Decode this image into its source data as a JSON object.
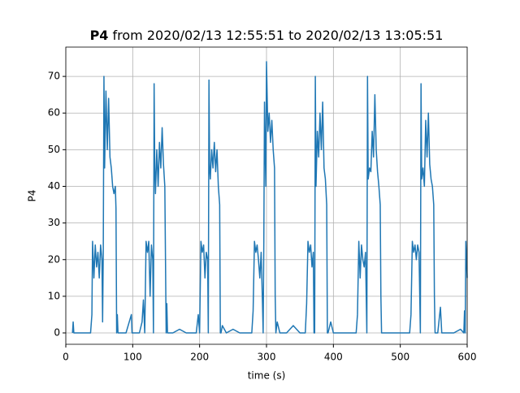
{
  "chart_data": {
    "type": "line",
    "title_bold": "P4",
    "title": "from 2020/02/13 12:55:51 to 2020/02/13 13:05:51",
    "xlabel": "time (s)",
    "ylabel": "P4",
    "xlim": [
      0,
      600
    ],
    "ylim": [
      -3.1,
      78
    ],
    "xticks": [
      0,
      100,
      200,
      300,
      400,
      500,
      600
    ],
    "yticks": [
      0,
      10,
      20,
      30,
      40,
      50,
      60,
      70
    ],
    "grid": true,
    "series": [
      {
        "name": "P4",
        "color": "#1f77b4",
        "x": [
          10,
          11,
          12,
          20,
          30,
          37,
          39,
          40,
          42,
          44,
          46,
          48,
          50,
          52,
          54,
          55,
          56,
          57,
          58,
          60,
          62,
          64,
          66,
          68,
          70,
          72,
          74,
          75,
          76,
          77,
          78,
          80,
          90,
          98,
          99,
          100,
          110,
          114,
          116,
          118,
          120,
          122,
          124,
          126,
          128,
          130,
          131,
          132,
          133,
          134,
          136,
          138,
          140,
          142,
          144,
          146,
          148,
          149,
          150,
          151,
          152,
          154,
          160,
          170,
          180,
          190,
          195,
          198,
          200,
          202,
          204,
          206,
          208,
          210,
          212,
          213,
          214,
          215,
          216,
          218,
          220,
          222,
          224,
          226,
          228,
          230,
          231,
          232,
          234,
          240,
          250,
          260,
          270,
          275,
          278,
          280,
          282,
          284,
          286,
          288,
          290,
          292,
          294,
          295,
          296,
          297,
          298,
          299,
          300,
          302,
          304,
          306,
          308,
          310,
          312,
          313,
          314,
          316,
          320,
          330,
          340,
          350,
          355,
          358,
          360,
          362,
          364,
          366,
          368,
          370,
          371,
          372,
          373,
          374,
          376,
          378,
          380,
          382,
          384,
          386,
          388,
          390,
          391,
          392,
          396,
          400,
          410,
          420,
          430,
          434,
          436,
          438,
          440,
          442,
          444,
          446,
          448,
          450,
          451,
          452,
          454,
          456,
          458,
          460,
          462,
          464,
          466,
          468,
          470,
          471,
          472,
          474,
          480,
          490,
          500,
          510,
          514,
          516,
          518,
          520,
          522,
          524,
          526,
          528,
          530,
          531,
          532,
          534,
          536,
          538,
          540,
          542,
          544,
          546,
          548,
          550,
          551,
          552,
          556,
          560,
          562,
          570,
          580,
          590,
          595,
          596,
          597,
          598,
          600
        ],
        "values": [
          0,
          3,
          0,
          0,
          0,
          0,
          5,
          25,
          15,
          24,
          18,
          22,
          15,
          24,
          20,
          3,
          22,
          70,
          45,
          66,
          50,
          64,
          48,
          45,
          40,
          38,
          40,
          34,
          0,
          5,
          0,
          0,
          0,
          5,
          0,
          0,
          0,
          3,
          9,
          0,
          25,
          22,
          25,
          10,
          24,
          20,
          0,
          68,
          45,
          38,
          50,
          40,
          52,
          45,
          56,
          46,
          40,
          20,
          0,
          8,
          0,
          0,
          0,
          1,
          0,
          0,
          0,
          5,
          0,
          25,
          22,
          24,
          15,
          22,
          20,
          0,
          69,
          45,
          42,
          50,
          45,
          52,
          44,
          50,
          40,
          35,
          0,
          0,
          2,
          0,
          1,
          0,
          0,
          0,
          0,
          6,
          25,
          22,
          24,
          20,
          15,
          22,
          8,
          0,
          25,
          63,
          50,
          40,
          74,
          55,
          60,
          52,
          58,
          50,
          45,
          10,
          0,
          3,
          0,
          0,
          2,
          0,
          0,
          0,
          8,
          25,
          22,
          24,
          18,
          22,
          0,
          0,
          70,
          40,
          55,
          48,
          60,
          50,
          63,
          45,
          42,
          35,
          0,
          0,
          3,
          0,
          0,
          0,
          0,
          0,
          5,
          25,
          15,
          24,
          20,
          18,
          22,
          0,
          70,
          42,
          45,
          44,
          55,
          48,
          65,
          50,
          44,
          40,
          35,
          10,
          0,
          0,
          0,
          0,
          0,
          0,
          0,
          5,
          25,
          22,
          24,
          20,
          24,
          22,
          0,
          68,
          42,
          45,
          40,
          58,
          48,
          60,
          46,
          42,
          40,
          35,
          10,
          0,
          0,
          7,
          0,
          0,
          0,
          1,
          0,
          6,
          0,
          25,
          15
        ]
      }
    ]
  }
}
